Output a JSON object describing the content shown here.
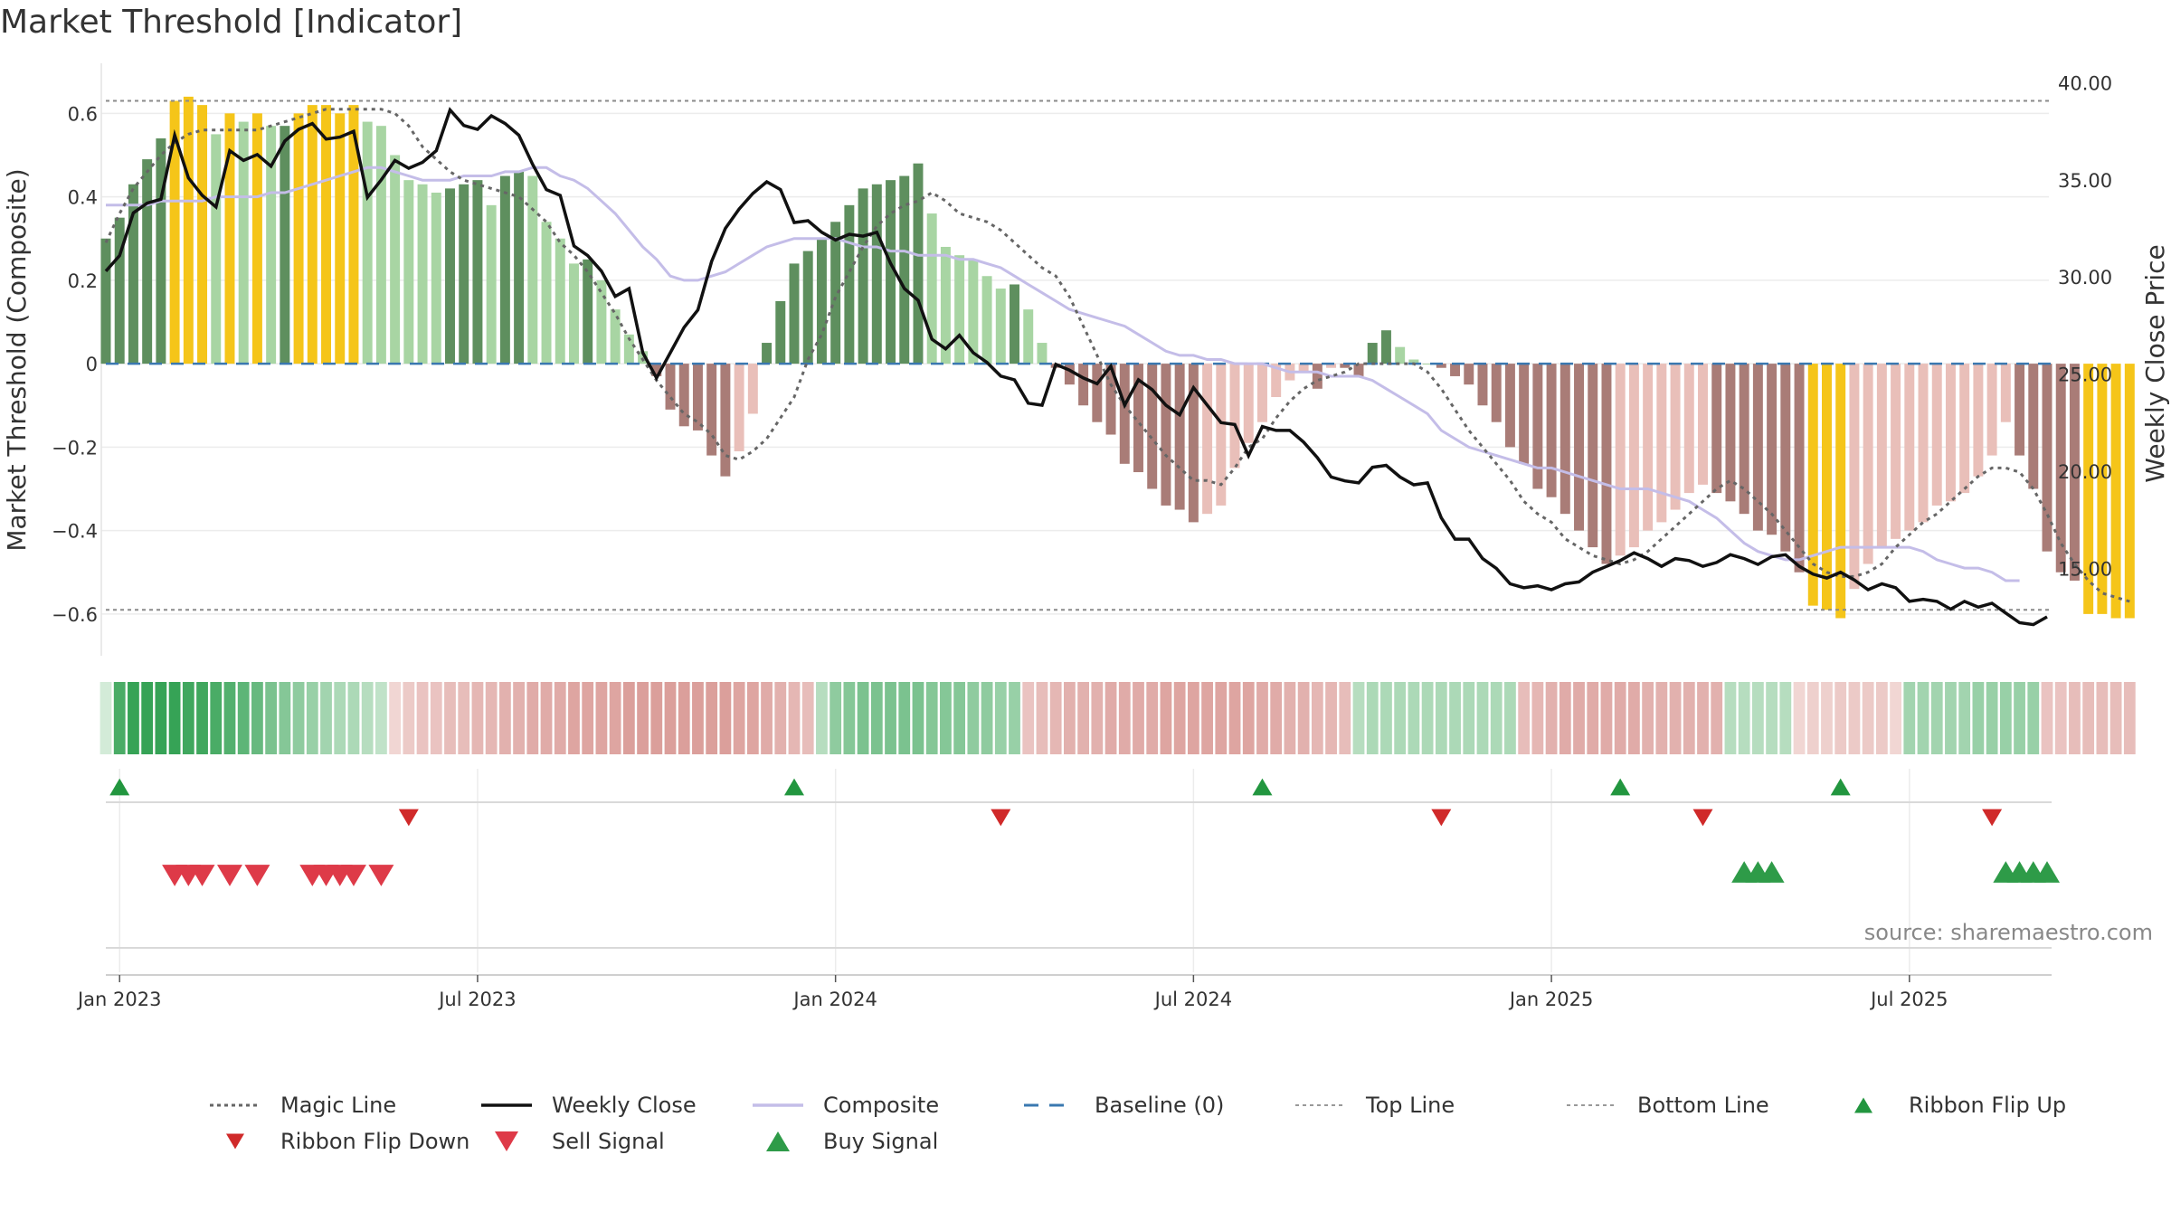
{
  "title": "Market Threshold [Indicator]",
  "source": "source: sharemaestro.com",
  "chart_data": {
    "type": "bar",
    "left_axis": {
      "label": "Market Threshold (Composite)",
      "ylim": [
        -0.7,
        0.72
      ],
      "ticks": [
        {
          "v": 0.6,
          "t": "0.6"
        },
        {
          "v": 0.4,
          "t": "0.4"
        },
        {
          "v": 0.2,
          "t": "0.2"
        },
        {
          "v": 0,
          "t": "0"
        },
        {
          "v": -0.2,
          "t": "−0.2"
        },
        {
          "v": -0.4,
          "t": "−0.4"
        },
        {
          "v": -0.6,
          "t": "−0.6"
        }
      ]
    },
    "right_axis": {
      "label": "Weekly Close Price",
      "ylim": [
        10.5,
        41.0
      ],
      "ticks": [
        {
          "v": 40,
          "t": "40.00"
        },
        {
          "v": 35,
          "t": "35.00"
        },
        {
          "v": 30,
          "t": "30.00"
        },
        {
          "v": 25,
          "t": "25.00"
        },
        {
          "v": 20,
          "t": "20.00"
        },
        {
          "v": 15,
          "t": "15.00"
        }
      ]
    },
    "x_axis": {
      "start": "2022-12-26",
      "weeks": 142,
      "ticks": [
        {
          "w": 1,
          "t": "Jan 2023"
        },
        {
          "w": 27,
          "t": "Jul 2023"
        },
        {
          "w": 53,
          "t": "Jan 2024"
        },
        {
          "w": 79,
          "t": "Jul 2024"
        },
        {
          "w": 105,
          "t": "Jan 2025"
        },
        {
          "w": 131,
          "t": "Jul 2025"
        }
      ]
    },
    "top_line": 0.63,
    "bottom_line": -0.59,
    "composite_bars": [
      0.3,
      0.35,
      0.43,
      0.49,
      0.54,
      0.63,
      0.64,
      0.62,
      0.55,
      0.6,
      0.58,
      0.6,
      0.57,
      0.57,
      0.6,
      0.62,
      0.62,
      0.6,
      0.62,
      0.58,
      0.57,
      0.5,
      0.44,
      0.43,
      0.41,
      0.42,
      0.43,
      0.44,
      0.38,
      0.45,
      0.46,
      0.45,
      0.34,
      0.3,
      0.24,
      0.25,
      0.2,
      0.13,
      0.07,
      0.03,
      -0.03,
      -0.11,
      -0.15,
      -0.16,
      -0.22,
      -0.27,
      -0.21,
      -0.12,
      0.05,
      0.15,
      0.24,
      0.27,
      0.3,
      0.34,
      0.38,
      0.42,
      0.43,
      0.44,
      0.45,
      0.48,
      0.36,
      0.28,
      0.26,
      0.25,
      0.21,
      0.18,
      0.19,
      0.13,
      0.05,
      -0.01,
      -0.05,
      -0.1,
      -0.14,
      -0.17,
      -0.24,
      -0.26,
      -0.3,
      -0.34,
      -0.35,
      -0.38,
      -0.36,
      -0.34,
      -0.25,
      -0.19,
      -0.14,
      -0.08,
      -0.04,
      -0.02,
      -0.06,
      -0.01,
      -0.01,
      -0.03,
      0.05,
      0.08,
      0.04,
      0.01,
      0.0,
      -0.01,
      -0.03,
      -0.05,
      -0.1,
      -0.14,
      -0.2,
      -0.24,
      -0.3,
      -0.32,
      -0.36,
      -0.4,
      -0.44,
      -0.48,
      -0.46,
      -0.44,
      -0.4,
      -0.38,
      -0.35,
      -0.31,
      -0.29,
      -0.31,
      -0.33,
      -0.36,
      -0.4,
      -0.41,
      -0.45,
      -0.5,
      -0.58,
      -0.59,
      -0.61,
      -0.54,
      -0.48,
      -0.44,
      -0.42,
      -0.4,
      -0.38,
      -0.34,
      -0.33,
      -0.31,
      -0.27,
      -0.22,
      -0.14,
      -0.22,
      -0.3,
      -0.45,
      -0.5,
      -0.52,
      -0.6,
      -0.6,
      -0.61,
      -0.61
    ],
    "magic_line": [
      0.29,
      0.36,
      0.42,
      0.46,
      0.5,
      0.53,
      0.55,
      0.56,
      0.56,
      0.56,
      0.56,
      0.56,
      0.57,
      0.58,
      0.59,
      0.6,
      0.61,
      0.61,
      0.61,
      0.61,
      0.61,
      0.6,
      0.57,
      0.52,
      0.49,
      0.46,
      0.44,
      0.43,
      0.42,
      0.41,
      0.4,
      0.37,
      0.34,
      0.29,
      0.26,
      0.22,
      0.17,
      0.12,
      0.06,
      0.01,
      -0.04,
      -0.08,
      -0.12,
      -0.14,
      -0.17,
      -0.22,
      -0.23,
      -0.21,
      -0.18,
      -0.13,
      -0.08,
      0.01,
      0.07,
      0.16,
      0.22,
      0.28,
      0.33,
      0.36,
      0.38,
      0.39,
      0.41,
      0.39,
      0.36,
      0.35,
      0.34,
      0.32,
      0.29,
      0.26,
      0.23,
      0.21,
      0.16,
      0.09,
      0.02,
      -0.05,
      -0.1,
      -0.14,
      -0.18,
      -0.22,
      -0.25,
      -0.28,
      -0.28,
      -0.29,
      -0.25,
      -0.2,
      -0.18,
      -0.13,
      -0.09,
      -0.06,
      -0.04,
      -0.03,
      -0.02,
      0.0,
      0.0,
      0.0,
      0.0,
      0.0,
      -0.02,
      -0.06,
      -0.11,
      -0.16,
      -0.2,
      -0.24,
      -0.28,
      -0.33,
      -0.36,
      -0.38,
      -0.42,
      -0.44,
      -0.46,
      -0.47,
      -0.48,
      -0.47,
      -0.45,
      -0.42,
      -0.39,
      -0.36,
      -0.33,
      -0.3,
      -0.28,
      -0.3,
      -0.33,
      -0.36,
      -0.4,
      -0.44,
      -0.48,
      -0.5,
      -0.51,
      -0.51,
      -0.5,
      -0.48,
      -0.44,
      -0.41,
      -0.38,
      -0.36,
      -0.33,
      -0.3,
      -0.27,
      -0.25,
      -0.25,
      -0.26,
      -0.3,
      -0.36,
      -0.43,
      -0.48,
      -0.52,
      -0.55,
      -0.56,
      -0.57
    ],
    "composite_line": [
      0.38,
      0.38,
      0.38,
      0.38,
      0.39,
      0.39,
      0.39,
      0.39,
      0.4,
      0.4,
      0.4,
      0.4,
      0.41,
      0.41,
      0.42,
      0.43,
      0.44,
      0.45,
      0.46,
      0.47,
      0.47,
      0.46,
      0.45,
      0.44,
      0.44,
      0.44,
      0.45,
      0.45,
      0.45,
      0.46,
      0.46,
      0.47,
      0.47,
      0.45,
      0.44,
      0.42,
      0.39,
      0.36,
      0.32,
      0.28,
      0.25,
      0.21,
      0.2,
      0.2,
      0.21,
      0.22,
      0.24,
      0.26,
      0.28,
      0.29,
      0.3,
      0.3,
      0.3,
      0.3,
      0.29,
      0.28,
      0.28,
      0.27,
      0.27,
      0.26,
      0.26,
      0.26,
      0.25,
      0.25,
      0.24,
      0.23,
      0.21,
      0.19,
      0.17,
      0.15,
      0.13,
      0.12,
      0.11,
      0.1,
      0.09,
      0.07,
      0.05,
      0.03,
      0.02,
      0.02,
      0.01,
      0.01,
      0.0,
      0.0,
      0.0,
      -0.01,
      -0.02,
      -0.02,
      -0.02,
      -0.03,
      -0.03,
      -0.03,
      -0.04,
      -0.06,
      -0.08,
      -0.1,
      -0.12,
      -0.16,
      -0.18,
      -0.2,
      -0.21,
      -0.22,
      -0.23,
      -0.24,
      -0.25,
      -0.25,
      -0.26,
      -0.27,
      -0.28,
      -0.29,
      -0.3,
      -0.3,
      -0.3,
      -0.31,
      -0.32,
      -0.33,
      -0.35,
      -0.37,
      -0.4,
      -0.43,
      -0.45,
      -0.46,
      -0.47,
      -0.47,
      -0.46,
      -0.45,
      -0.44,
      -0.44,
      -0.44,
      -0.44,
      -0.44,
      -0.44,
      -0.45,
      -0.47,
      -0.48,
      -0.49,
      -0.49,
      -0.5,
      -0.52,
      -0.52
    ],
    "weekly_close": [
      30.3,
      31.1,
      33.3,
      33.8,
      34.0,
      37.3,
      35.1,
      34.2,
      33.6,
      36.5,
      36.0,
      36.3,
      35.7,
      37.0,
      37.6,
      37.9,
      37.1,
      37.2,
      37.5,
      34.1,
      35.0,
      36.0,
      35.6,
      35.9,
      36.5,
      38.6,
      37.8,
      37.6,
      38.3,
      37.9,
      37.3,
      35.8,
      34.5,
      34.2,
      31.6,
      31.1,
      30.3,
      29.0,
      29.4,
      26.1,
      24.8,
      26.1,
      27.4,
      28.3,
      30.8,
      32.5,
      33.5,
      34.3,
      34.9,
      34.5,
      32.8,
      32.9,
      32.3,
      31.9,
      32.2,
      32.1,
      32.3,
      30.7,
      29.4,
      28.8,
      26.8,
      26.3,
      27.0,
      26.1,
      25.6,
      24.9,
      24.7,
      23.5,
      23.4,
      25.5,
      25.2,
      24.8,
      24.5,
      25.4,
      23.4,
      24.7,
      24.2,
      23.4,
      22.9,
      24.3,
      23.4,
      22.5,
      22.4,
      20.8,
      22.3,
      22.1,
      22.1,
      21.5,
      20.7,
      19.7,
      19.5,
      19.4,
      20.2,
      20.3,
      19.7,
      19.3,
      19.4,
      17.6,
      16.5,
      16.5,
      15.5,
      15.0,
      14.2,
      14.0,
      14.1,
      13.9,
      14.2,
      14.3,
      14.8,
      15.1,
      15.4,
      15.8,
      15.5,
      15.1,
      15.5,
      15.4,
      15.1,
      15.3,
      15.7,
      15.5,
      15.2,
      15.6,
      15.7,
      15.1,
      14.7,
      14.5,
      14.8,
      14.4,
      13.9,
      14.2,
      14.0,
      13.3,
      13.4,
      13.3,
      12.9,
      13.3,
      13.0,
      13.2,
      12.7,
      12.2,
      12.1,
      12.5
    ],
    "ribbon": [
      0.15,
      0.85,
      0.95,
      0.95,
      0.95,
      0.95,
      0.9,
      0.9,
      0.85,
      0.8,
      0.75,
      0.7,
      0.6,
      0.55,
      0.5,
      0.45,
      0.4,
      0.35,
      0.35,
      0.3,
      0.25,
      -0.15,
      -0.25,
      -0.3,
      -0.3,
      -0.35,
      -0.35,
      -0.4,
      -0.4,
      -0.45,
      -0.45,
      -0.5,
      -0.5,
      -0.5,
      -0.55,
      -0.55,
      -0.55,
      -0.55,
      -0.6,
      -0.6,
      -0.6,
      -0.6,
      -0.6,
      -0.6,
      -0.6,
      -0.6,
      -0.55,
      -0.55,
      -0.5,
      -0.45,
      -0.4,
      -0.35,
      0.3,
      0.5,
      0.55,
      0.6,
      0.6,
      0.6,
      0.6,
      0.6,
      0.55,
      0.55,
      0.55,
      0.5,
      0.5,
      0.45,
      0.45,
      -0.3,
      -0.35,
      -0.4,
      -0.45,
      -0.45,
      -0.45,
      -0.5,
      -0.5,
      -0.5,
      -0.5,
      -0.55,
      -0.55,
      -0.55,
      -0.55,
      -0.55,
      -0.55,
      -0.55,
      -0.5,
      -0.5,
      -0.45,
      -0.45,
      -0.4,
      -0.4,
      -0.35,
      0.3,
      0.35,
      0.35,
      0.35,
      0.35,
      0.35,
      0.35,
      0.35,
      0.35,
      0.35,
      0.35,
      0.35,
      -0.35,
      -0.4,
      -0.45,
      -0.5,
      -0.5,
      -0.5,
      -0.5,
      -0.5,
      -0.5,
      -0.45,
      -0.45,
      -0.45,
      -0.45,
      -0.45,
      -0.45,
      0.3,
      0.3,
      0.3,
      0.3,
      0.3,
      -0.15,
      -0.2,
      -0.2,
      -0.25,
      -0.25,
      -0.25,
      -0.25,
      -0.15,
      0.4,
      0.4,
      0.4,
      0.4,
      0.4,
      0.45,
      0.45,
      0.45,
      0.45,
      0.45,
      -0.3,
      -0.3,
      -0.35,
      -0.35,
      -0.35,
      -0.35,
      -0.35
    ],
    "ribbon_flip_up_weeks": [
      1,
      50,
      84,
      110,
      126
    ],
    "ribbon_flip_down_weeks": [
      22,
      65,
      97,
      116,
      137
    ],
    "sell_signal_weeks": [
      5,
      6,
      7,
      9,
      11,
      15,
      16,
      17,
      18,
      20
    ],
    "buy_signal_weeks": [
      119,
      120,
      121,
      138,
      139,
      140,
      141
    ],
    "legend": [
      {
        "label": "Magic Line",
        "kind": "dotted",
        "color": "#666666"
      },
      {
        "label": "Weekly Close",
        "kind": "solid",
        "color": "#111111"
      },
      {
        "label": "Composite",
        "kind": "solid",
        "color": "#c4bde8"
      },
      {
        "label": "Baseline (0)",
        "kind": "dashed",
        "color": "#3a78b0"
      },
      {
        "label": "Top Line",
        "kind": "dotted-thin",
        "color": "#999999"
      },
      {
        "label": "Bottom Line",
        "kind": "dotted-thin",
        "color": "#999999"
      },
      {
        "label": "Ribbon Flip Up",
        "kind": "tri-up-small",
        "color": "#22963f"
      },
      {
        "label": "Ribbon Flip Down",
        "kind": "tri-down-small",
        "color": "#d02a2a"
      },
      {
        "label": "Sell Signal",
        "kind": "tri-down",
        "color": "#de3a48"
      },
      {
        "label": "Buy Signal",
        "kind": "tri-up",
        "color": "#2e9b48"
      }
    ],
    "colors": {
      "pos_dark": "#5e8f5e",
      "pos_light": "#a8d5a3",
      "neg_dark": "#a97c77",
      "neg_light": "#e9bfb9",
      "extreme": "#f5c519",
      "grid": "#ececec"
    }
  }
}
